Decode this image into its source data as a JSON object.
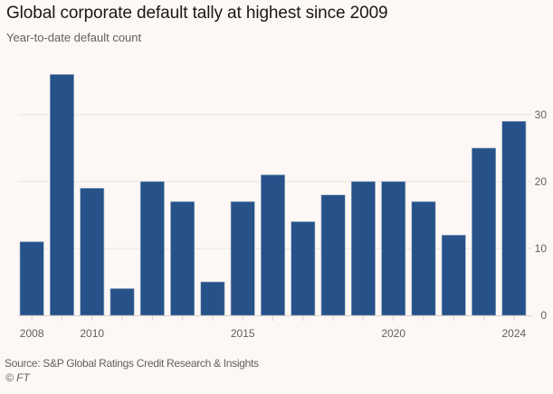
{
  "header": {
    "title": "Global corporate default tally at highest since 2009",
    "subtitle": "Year-to-date default count"
  },
  "footer": {
    "source": "Source: S&P Global Ratings Credit Research & Insights",
    "copyright": "© FT"
  },
  "colors": {
    "bar": "#265289",
    "background": "#fdf8f5",
    "grid": "#ebe5e1",
    "text": "#66605c"
  },
  "chart_data": {
    "type": "bar",
    "title": "Global corporate default tally at highest since 2009",
    "subtitle": "Year-to-date default count",
    "xlabel": "",
    "ylabel": "",
    "categories": [
      "2008",
      "2009",
      "2010",
      "2011",
      "2012",
      "2013",
      "2014",
      "2015",
      "2016",
      "2017",
      "2018",
      "2019",
      "2020",
      "2021",
      "2022",
      "2023",
      "2024"
    ],
    "values": [
      11,
      36,
      19,
      4,
      20,
      17,
      5,
      17,
      21,
      14,
      18,
      20,
      20,
      17,
      12,
      25,
      29
    ],
    "x_tick_labels": [
      "2008",
      "2010",
      "2015",
      "2020",
      "2024"
    ],
    "y_ticks": [
      0,
      10,
      20,
      30
    ],
    "ylim": [
      0,
      37
    ],
    "y_axis_side": "right",
    "grid": true,
    "legend": "none"
  }
}
